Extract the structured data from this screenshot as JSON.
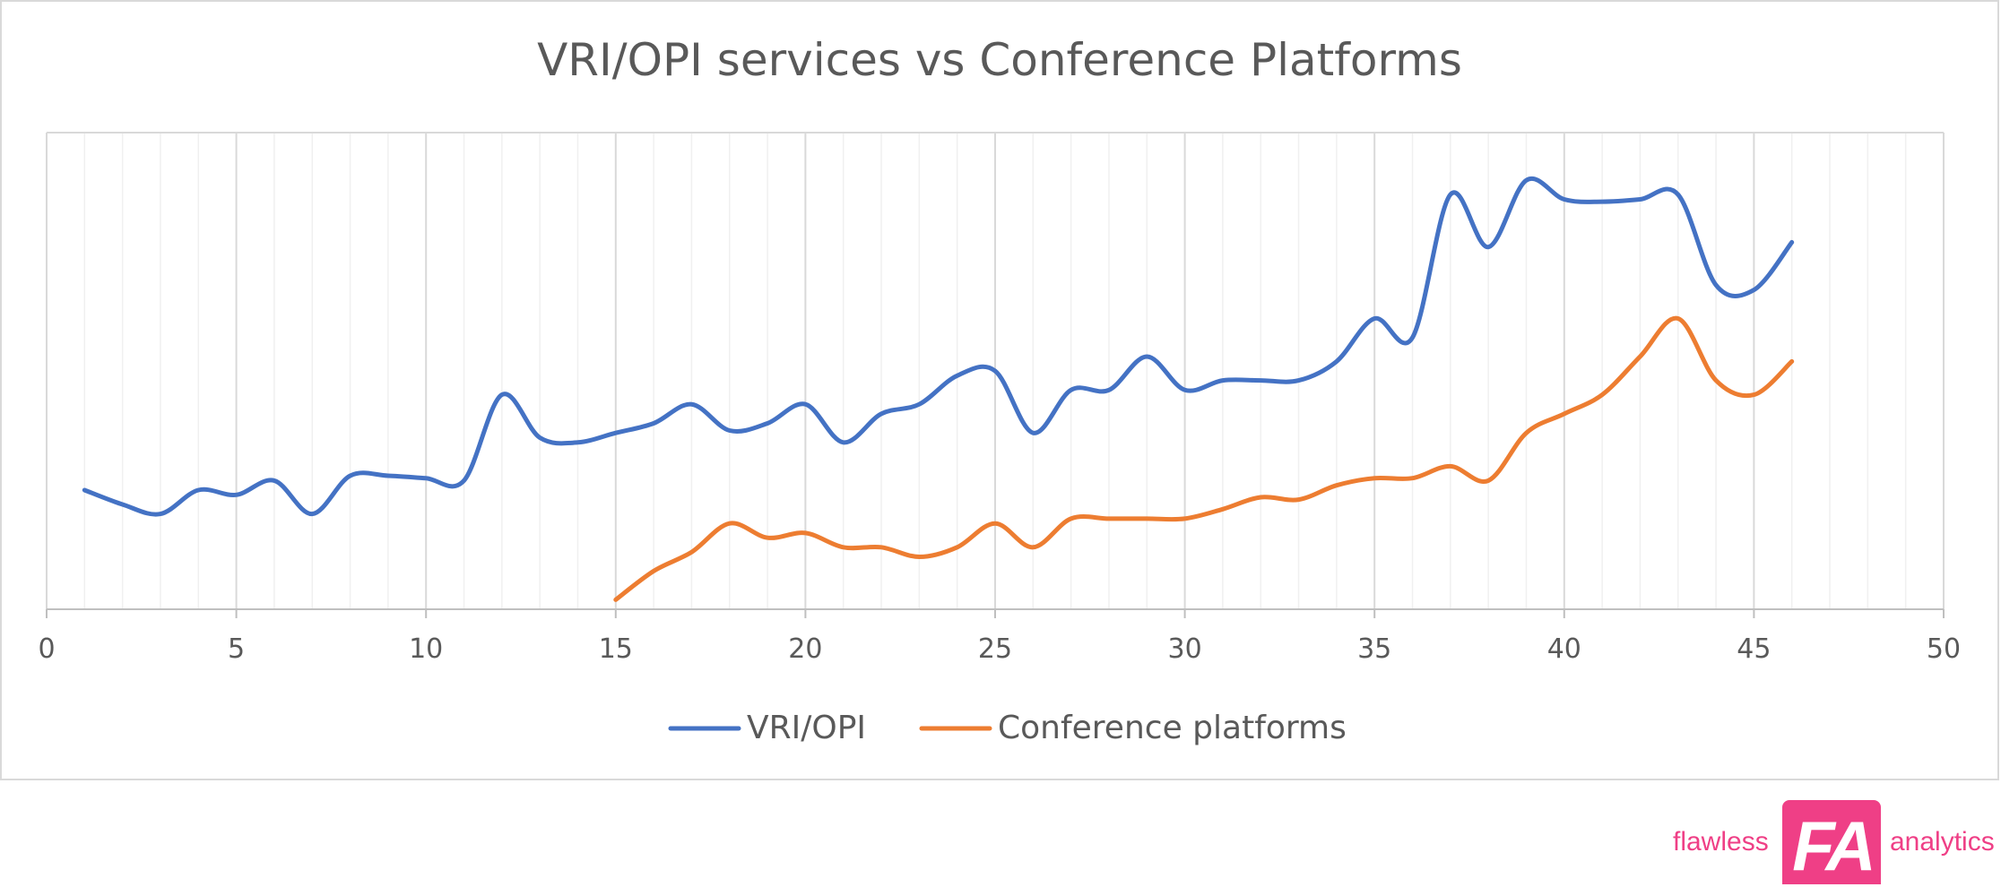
{
  "chart_data": {
    "type": "line",
    "title": "VRI/OPI services vs Conference Platforms",
    "xlabel": "",
    "ylabel": "",
    "xlim": [
      0,
      50
    ],
    "ylim": [
      0,
      100
    ],
    "x_ticks": [
      0,
      5,
      10,
      15,
      20,
      25,
      30,
      35,
      40,
      45,
      50
    ],
    "grid": {
      "vertical_major": true,
      "vertical_minor": true,
      "horizontal": false
    },
    "show_y_axis_labels": false,
    "smooth": true,
    "legend": "bottom",
    "series": [
      {
        "name": "VRI/OPI",
        "color": "#4472c4",
        "x": [
          1,
          2,
          3,
          4,
          5,
          6,
          7,
          8,
          9,
          10,
          11,
          12,
          13,
          14,
          15,
          16,
          17,
          18,
          19,
          20,
          21,
          22,
          23,
          24,
          25,
          26,
          27,
          28,
          29,
          30,
          31,
          32,
          33,
          34,
          35,
          36,
          37,
          38,
          39,
          40,
          41,
          42,
          43,
          44,
          45,
          46
        ],
        "y": [
          25,
          22,
          20,
          25,
          24,
          27,
          20,
          28,
          28,
          27.5,
          27,
          45,
          36,
          35,
          37,
          39,
          43,
          37.5,
          39,
          43,
          35,
          41,
          43,
          49,
          50,
          37,
          46,
          46,
          53,
          46,
          48,
          48,
          48,
          52,
          61,
          57,
          87,
          76,
          90,
          86,
          85.5,
          86,
          87,
          68,
          67,
          77
        ]
      },
      {
        "name": "Conference platforms",
        "color": "#ed7d31",
        "x": [
          15,
          16,
          17,
          18,
          19,
          20,
          21,
          22,
          23,
          24,
          25,
          26,
          27,
          28,
          29,
          30,
          31,
          32,
          33,
          34,
          35,
          36,
          37,
          38,
          39,
          40,
          41,
          42,
          43,
          44,
          45,
          46
        ],
        "y": [
          2,
          8,
          12,
          18,
          15,
          16,
          13,
          13,
          11,
          13,
          18,
          13,
          19,
          19,
          19,
          19,
          21,
          23.5,
          23,
          26,
          27.5,
          27.5,
          30,
          27,
          37,
          41,
          45,
          53,
          61,
          48,
          45,
          52
        ]
      }
    ]
  },
  "brand": {
    "left_word": "flawless",
    "mark": "FA",
    "right_word": "analytics",
    "color": "#ef3f86"
  }
}
